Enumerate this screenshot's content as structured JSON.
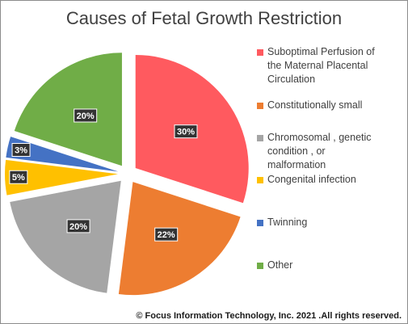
{
  "chart_data": {
    "type": "pie",
    "title": "Causes of Fetal Growth Restriction",
    "slices": [
      {
        "label": "Suboptimal Perfusion of the Maternal Placental Circulation",
        "value": 30,
        "display": "30%",
        "color": "#ff5a5f"
      },
      {
        "label": "Constitutionally  small",
        "value": 22,
        "display": "22%",
        "color": "#ed7d31"
      },
      {
        "label": "Chromosomal , genetic condition , or malformation",
        "value": 20,
        "display": "20%",
        "color": "#a5a5a5"
      },
      {
        "label": "Congenital infection",
        "value": 5,
        "display": "5%",
        "color": "#ffc000"
      },
      {
        "label": "Twinning",
        "value": 3,
        "display": "3%",
        "color": "#4472c4"
      },
      {
        "label": "Other",
        "value": 20,
        "display": "20%",
        "color": "#70ad47"
      }
    ],
    "legend_position": "right",
    "exploded": true
  },
  "legend": {
    "items": [
      {
        "line1": "Suboptimal Perfusion of",
        "line2": "the Maternal Placental",
        "line3": "Circulation"
      },
      {
        "line1": "Constitutionally  small"
      },
      {
        "line1": "Chromosomal , genetic",
        "line2": "condition , or",
        "line3": "malformation"
      },
      {
        "line1": "Congenital infection"
      },
      {
        "line1": "Twinning"
      },
      {
        "line1": "Other"
      }
    ]
  },
  "footer": "© Focus Information Technology, Inc. 2021 .All rights reserved."
}
